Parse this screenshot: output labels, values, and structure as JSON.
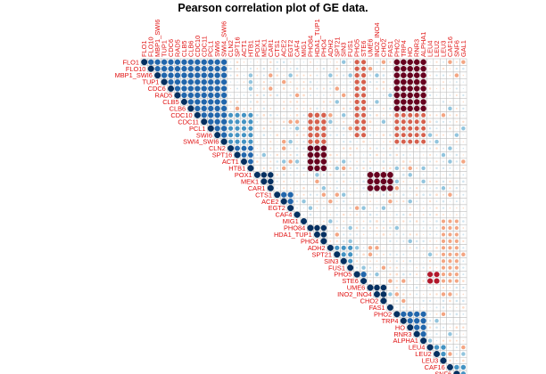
{
  "chart_data": {
    "type": "heatmap",
    "title": "Pearson correlation plot of GE data.",
    "variables": [
      "FLO1",
      "FLO10",
      "MBP1_SWI6",
      "TUP1",
      "CDC6",
      "RAD5",
      "CLB5",
      "CLB6",
      "CDC10",
      "CDC11",
      "PCL1",
      "SWI6",
      "SWI4_SWI6",
      "CLN2",
      "SPT16",
      "ACT1",
      "HTB1",
      "POX1",
      "MEK1",
      "CAR1",
      "CTS1",
      "ACE2",
      "EGT2",
      "CAF4",
      "MIG1",
      "PHO84",
      "HDA1_TUP1",
      "PHO4",
      "ADH2",
      "SPT21",
      "SIN3",
      "FUS1",
      "PHO5",
      "STE6",
      "UME6",
      "INO2_INO4",
      "CHO2",
      "FAS1",
      "PHO2",
      "TRP4",
      "HO",
      "RNR3",
      "ALPHA1",
      "LEU4",
      "LEU2",
      "LEU3",
      "CAF16",
      "SNF6",
      "GAL1"
    ],
    "upper_triangle_only": true,
    "color_scale": {
      "min": -1,
      "max": 1,
      "negative_color": "#67001f",
      "neutral_color": "#ffffff",
      "positive_color": "#053061"
    },
    "grid": true,
    "correlation_blocks": [
      {
        "rows": [
          "FLO1",
          "SWI4_SWI6"
        ],
        "cols": [
          "FLO1",
          "SWI4_SWI6"
        ],
        "value": 0.8
      },
      {
        "rows": [
          "CDC10",
          "SWI4_SWI6"
        ],
        "cols": [
          "CLN2",
          "HTB1"
        ],
        "value": 0.55
      },
      {
        "rows": [
          "CLN2",
          "HTB1"
        ],
        "cols": [
          "CLN2",
          "HTB1"
        ],
        "value": 0.7
      },
      {
        "rows": [
          "POX1",
          "CAR1"
        ],
        "cols": [
          "POX1",
          "CAR1"
        ],
        "value": 0.85
      },
      {
        "rows": [
          "CTS1",
          "EGT2"
        ],
        "cols": [
          "CTS1",
          "EGT2"
        ],
        "value": 0.8
      },
      {
        "rows": [
          "PHO84",
          "PHO4"
        ],
        "cols": [
          "PHO84",
          "PHO4"
        ],
        "value": 0.85
      },
      {
        "rows": [
          "ADH2",
          "FUS1"
        ],
        "cols": [
          "ADH2",
          "FUS1"
        ],
        "value": 0.55
      },
      {
        "rows": [
          "PHO5",
          "STE6"
        ],
        "cols": [
          "PHO5",
          "STE6"
        ],
        "value": 0.8
      },
      {
        "rows": [
          "UME6",
          "CHO2"
        ],
        "cols": [
          "UME6",
          "CHO2"
        ],
        "value": 0.9
      },
      {
        "rows": [
          "PHO2",
          "ALPHA1"
        ],
        "cols": [
          "PHO2",
          "ALPHA1"
        ],
        "value": 0.8
      },
      {
        "rows": [
          "LEU4",
          "LEU3"
        ],
        "cols": [
          "LEU4",
          "LEU3"
        ],
        "value": 0.6
      },
      {
        "rows": [
          "CAF16",
          "GAL1"
        ],
        "cols": [
          "CAF16",
          "GAL1"
        ],
        "value": 0.6
      },
      {
        "rows": [
          "FLO1",
          "SWI6"
        ],
        "cols": [
          "PHO5",
          "STE6"
        ],
        "value": -0.55
      },
      {
        "rows": [
          "FLO1",
          "CLB6"
        ],
        "cols": [
          "PHO2",
          "ALPHA1"
        ],
        "value": -0.85
      },
      {
        "rows": [
          "CDC10",
          "SWI4_SWI6"
        ],
        "cols": [
          "PHO2",
          "ALPHA1"
        ],
        "value": -0.5
      },
      {
        "rows": [
          "CDC10",
          "SWI4_SWI6"
        ],
        "cols": [
          "PHO84",
          "PHO4"
        ],
        "value": -0.6
      },
      {
        "rows": [
          "CLN2",
          "HTB1"
        ],
        "cols": [
          "PHO84",
          "PHO4"
        ],
        "value": -0.85
      },
      {
        "rows": [
          "POX1",
          "CAR1"
        ],
        "cols": [
          "UME6",
          "FAS1"
        ],
        "value": -0.9
      },
      {
        "rows": [
          "MIG1",
          "STE6"
        ],
        "cols": [
          "LEU3",
          "SNF6"
        ],
        "value": -0.35
      },
      {
        "rows": [
          "PHO5",
          "STE6"
        ],
        "cols": [
          "LEU4",
          "LEU2"
        ],
        "value": -0.75
      }
    ]
  }
}
